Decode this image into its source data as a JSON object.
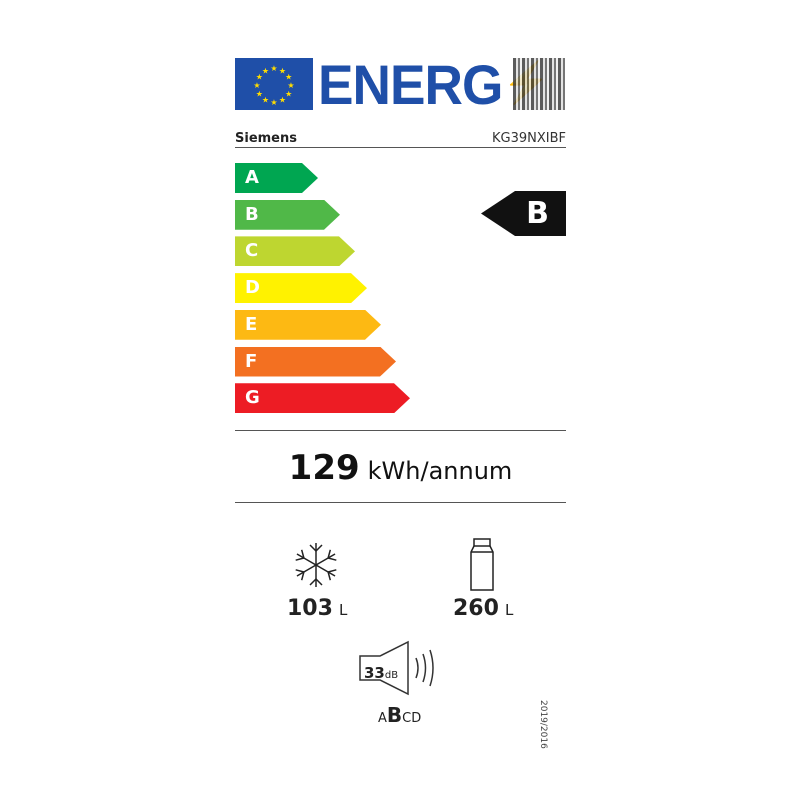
{
  "header": {
    "title": "ENERG",
    "supplier": "Siemens",
    "model": "KG39NXIBF"
  },
  "scale": [
    {
      "letter": "A",
      "color": "#00a651"
    },
    {
      "letter": "B",
      "color": "#50b848"
    },
    {
      "letter": "C",
      "color": "#bed630"
    },
    {
      "letter": "D",
      "color": "#fff200"
    },
    {
      "letter": "E",
      "color": "#fdb913"
    },
    {
      "letter": "F",
      "color": "#f37021"
    },
    {
      "letter": "G",
      "color": "#ed1c24"
    }
  ],
  "rating": "B",
  "consumption": {
    "value": "129",
    "unit": "kWh/annum"
  },
  "freezer": {
    "icon": "snowflake-icon",
    "value": "103",
    "unit": "L"
  },
  "fridge": {
    "icon": "bottle-icon",
    "value": "260",
    "unit": "L"
  },
  "noise": {
    "value": "33",
    "unit": "dB",
    "classes": [
      "A",
      "B",
      "C",
      "D"
    ],
    "selected": "B"
  },
  "regulation": "2019/2016"
}
